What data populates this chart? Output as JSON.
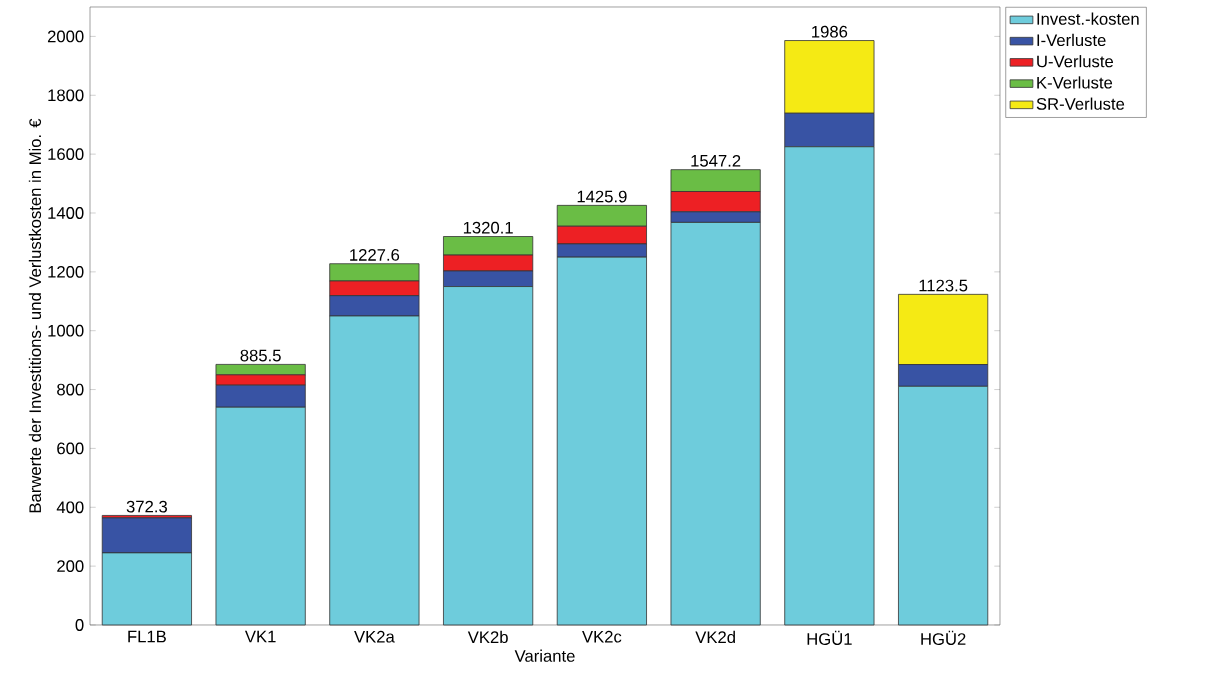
{
  "chart_data": {
    "type": "bar",
    "stacked": true,
    "xlabel": "Variante",
    "ylabel": "Barwerte der Investitions- und Verlustkosten in Mio. €",
    "categories": [
      "FL1B",
      "VK1",
      "VK2a",
      "VK2b",
      "VK2c",
      "VK2d",
      "HGÜ1",
      "HGÜ2"
    ],
    "series": [
      {
        "name": "Invest.-kosten",
        "color": "#6eccdc",
        "values": [
          245,
          740,
          1050,
          1150,
          1250,
          1368,
          1625,
          811
        ]
      },
      {
        "name": "I-Verluste",
        "color": "#3853a4",
        "values": [
          119,
          75,
          69,
          53,
          45,
          36,
          114,
          74
        ]
      },
      {
        "name": "U-Verluste",
        "color": "#ed2024",
        "values": [
          8.3,
          35,
          50,
          54,
          60,
          69,
          0,
          0
        ]
      },
      {
        "name": "K-Verluste",
        "color": "#6abd45",
        "values": [
          0,
          35.5,
          58.6,
          63.1,
          70.9,
          74.2,
          0,
          0
        ]
      },
      {
        "name": "SR-Verluste",
        "color": "#f5ea14",
        "values": [
          0,
          0,
          0,
          0,
          0,
          0,
          247,
          238.5
        ]
      }
    ],
    "totals": [
      "372.3",
      "885.5",
      "1227.6",
      "1320.1",
      "1425.9",
      "1547.2",
      "1986",
      "1123.5"
    ],
    "ylim": [
      0,
      2100
    ],
    "yticks": [
      0,
      200,
      400,
      600,
      800,
      1000,
      1200,
      1400,
      1600,
      1800,
      2000
    ],
    "grid": false,
    "legend": "top right"
  }
}
